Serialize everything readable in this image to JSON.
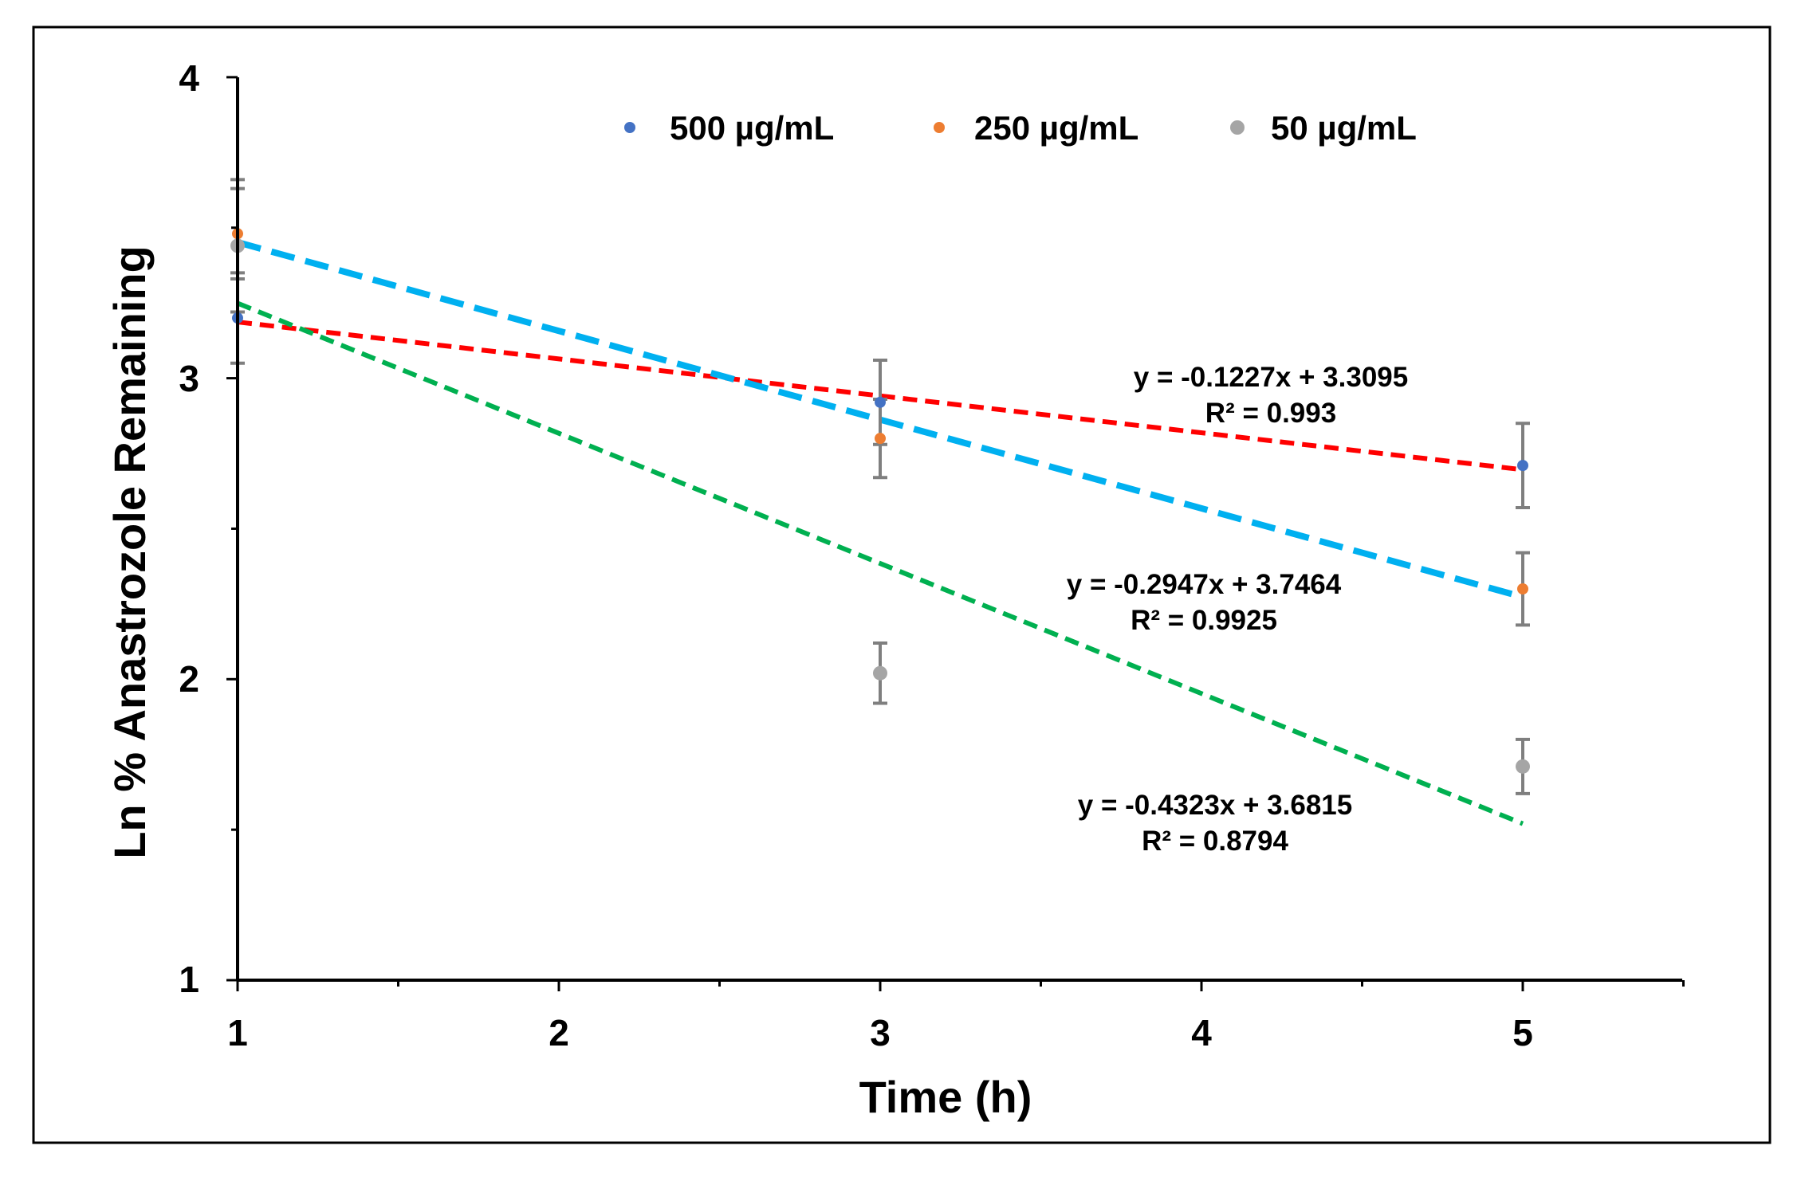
{
  "chart_data": {
    "type": "scatter",
    "xlabel": "Time (h)",
    "ylabel": "Ln  % Anastrozole  Remaining",
    "xlim": [
      1,
      5.5
    ],
    "ylim": [
      1,
      4
    ],
    "x_ticks": [
      "1",
      "2",
      "3",
      "4",
      "5"
    ],
    "y_ticks": [
      "1",
      "2",
      "3",
      "4"
    ],
    "legend_position": "top-center",
    "series": [
      {
        "name": "500 µg/mL",
        "color": "#4472C4",
        "x": [
          1,
          3,
          5
        ],
        "y": [
          3.2,
          2.92,
          2.71
        ],
        "error": [
          0.15,
          0.14,
          0.14
        ],
        "trendline": {
          "slope": -0.1227,
          "intercept": 3.3095,
          "color": "#FF0000",
          "equation": "y = -0.1227x + 3.3095",
          "r2": "R² = 0.993"
        }
      },
      {
        "name": "250 µg/mL",
        "color": "#ED7D31",
        "x": [
          1,
          3,
          5
        ],
        "y": [
          3.48,
          2.8,
          2.3
        ],
        "error": [
          0.15,
          0.13,
          0.12
        ],
        "trendline": {
          "slope": -0.2947,
          "intercept": 3.7464,
          "color": "#00B0F0",
          "equation": "y = -0.2947x + 3.7464",
          "r2": "R² = 0.9925"
        }
      },
      {
        "name": "50 µg/mL",
        "color": "#A5A5A5",
        "x": [
          1,
          3,
          5
        ],
        "y": [
          3.44,
          2.02,
          1.71
        ],
        "error": [
          0.22,
          0.1,
          0.09
        ],
        "trendline": {
          "slope": -0.4323,
          "intercept": 3.6815,
          "color": "#00B050",
          "equation": "y = -0.4323x + 3.6815",
          "r2": "R² = 0.8794"
        }
      }
    ]
  }
}
